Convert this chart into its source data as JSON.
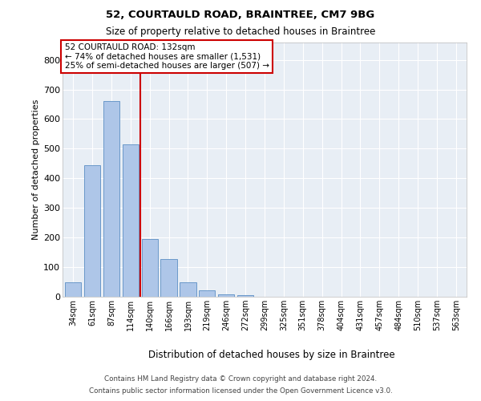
{
  "title_line1": "52, COURTAULD ROAD, BRAINTREE, CM7 9BG",
  "title_line2": "Size of property relative to detached houses in Braintree",
  "xlabel": "Distribution of detached houses by size in Braintree",
  "ylabel": "Number of detached properties",
  "footer_line1": "Contains HM Land Registry data © Crown copyright and database right 2024.",
  "footer_line2": "Contains public sector information licensed under the Open Government Licence v3.0.",
  "categories": [
    "34sqm",
    "61sqm",
    "87sqm",
    "114sqm",
    "140sqm",
    "166sqm",
    "193sqm",
    "219sqm",
    "246sqm",
    "272sqm",
    "299sqm",
    "325sqm",
    "351sqm",
    "378sqm",
    "404sqm",
    "431sqm",
    "457sqm",
    "484sqm",
    "510sqm",
    "537sqm",
    "563sqm"
  ],
  "values": [
    50,
    443,
    660,
    514,
    195,
    128,
    49,
    22,
    9,
    5,
    0,
    0,
    0,
    0,
    0,
    0,
    0,
    0,
    0,
    0,
    0
  ],
  "bar_color": "#aec6e8",
  "bar_edge_color": "#5b8ec4",
  "property_line_x": 3.5,
  "property_line_color": "#cc0000",
  "annotation_text": "52 COURTAULD ROAD: 132sqm\n← 74% of detached houses are smaller (1,531)\n25% of semi-detached houses are larger (507) →",
  "annotation_box_edgecolor": "#cc0000",
  "ylim": [
    0,
    860
  ],
  "yticks": [
    0,
    100,
    200,
    300,
    400,
    500,
    600,
    700,
    800
  ],
  "plot_bg_color": "#e8eef5",
  "grid_color": "#ffffff",
  "fig_bg_color": "#ffffff"
}
